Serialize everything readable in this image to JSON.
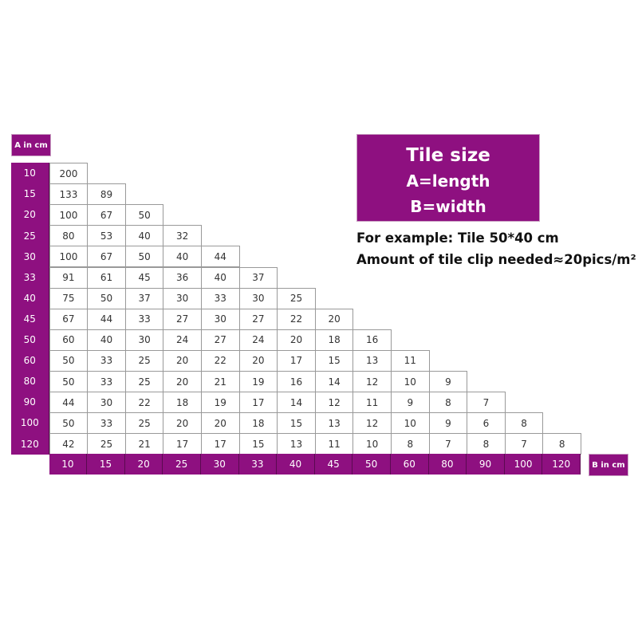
{
  "colors": {
    "accent": "#8e1080"
  },
  "a_label": "A in cm",
  "b_label": "B in cm",
  "info": {
    "title": "Tile size",
    "line1": "A=length",
    "line2": "B=width",
    "example": "For example: Tile 50*40 cm",
    "amount": "Amount of tile clip needed≈20pics/m²"
  },
  "table": {
    "a_values": [
      "10",
      "15",
      "20",
      "25",
      "30",
      "33",
      "40",
      "45",
      "50",
      "60",
      "80",
      "90",
      "100",
      "120"
    ],
    "b_values": [
      "10",
      "15",
      "20",
      "25",
      "30",
      "33",
      "40",
      "45",
      "50",
      "60",
      "80",
      "90",
      "100",
      "120"
    ],
    "rows": [
      [
        "200"
      ],
      [
        "133",
        "89"
      ],
      [
        "100",
        "67",
        "50"
      ],
      [
        "80",
        "53",
        "40",
        "32"
      ],
      [
        "100",
        "67",
        "50",
        "40",
        "44"
      ],
      [
        "91",
        "61",
        "45",
        "36",
        "40",
        "37"
      ],
      [
        "75",
        "50",
        "37",
        "30",
        "33",
        "30",
        "25"
      ],
      [
        "67",
        "44",
        "33",
        "27",
        "30",
        "27",
        "22",
        "20"
      ],
      [
        "60",
        "40",
        "30",
        "24",
        "27",
        "24",
        "20",
        "18",
        "16"
      ],
      [
        "50",
        "33",
        "25",
        "20",
        "22",
        "20",
        "17",
        "15",
        "13",
        "11"
      ],
      [
        "50",
        "33",
        "25",
        "20",
        "21",
        "19",
        "16",
        "14",
        "12",
        "10",
        "9"
      ],
      [
        "44",
        "30",
        "22",
        "18",
        "19",
        "17",
        "14",
        "12",
        "11",
        "9",
        "8",
        "7"
      ],
      [
        "50",
        "33",
        "25",
        "20",
        "20",
        "18",
        "15",
        "13",
        "12",
        "10",
        "9",
        "6",
        "8"
      ],
      [
        "42",
        "25",
        "21",
        "17",
        "17",
        "15",
        "13",
        "11",
        "10",
        "8",
        "7",
        "8",
        "7",
        "8"
      ]
    ]
  }
}
